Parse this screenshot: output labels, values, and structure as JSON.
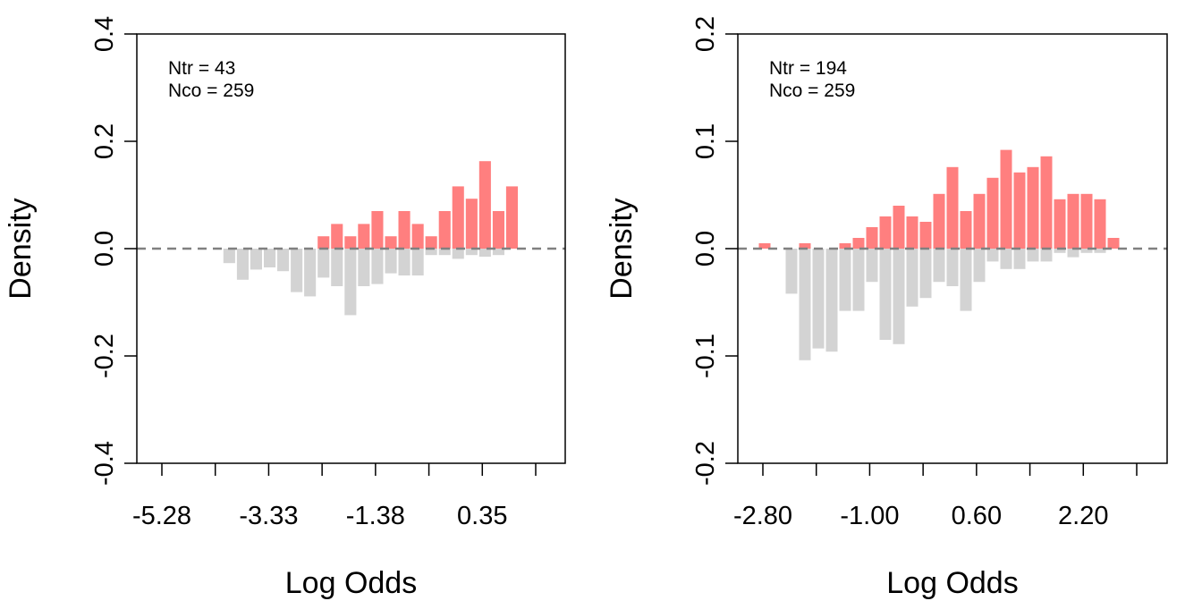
{
  "colors": {
    "treated": "#ff7f7f",
    "control": "#d3d3d3",
    "zero_line": "#808080"
  },
  "chart_data": [
    {
      "type": "bar",
      "xlabel": "Log Odds",
      "ylabel": "Density",
      "xlim": [
        -5.8,
        1.2
      ],
      "ylim": [
        -0.4,
        0.4
      ],
      "yticks": [
        "-0.4",
        "-0.2",
        "0.0",
        "0.2",
        "0.4"
      ],
      "xtick_labels": [
        "-5.28",
        "-3.33",
        "-1.38",
        "0.35"
      ],
      "annotations": [
        "Ntr =  43",
        "Nco =  259"
      ],
      "grid": false,
      "bin_edges": [
        -4.4,
        -4.18,
        -3.96,
        -3.74,
        -3.52,
        -3.3,
        -3.08,
        -2.86,
        -2.64,
        -2.42,
        -2.2,
        -1.98,
        -1.76,
        -1.54,
        -1.32,
        -1.1,
        -0.88,
        -0.66,
        -0.44,
        -0.22,
        0.0,
        0.22,
        0.44
      ],
      "series": [
        {
          "values": [
            0,
            0,
            0,
            0,
            0,
            0,
            0,
            0.023,
            0.046,
            0.023,
            0.046,
            0.07,
            0.023,
            0.07,
            0.046,
            0.023,
            0.07,
            0.116,
            0.093,
            0.163,
            0.07,
            0.116
          ]
        },
        {
          "values": [
            -0.027,
            -0.058,
            -0.039,
            -0.035,
            -0.042,
            -0.081,
            -0.089,
            -0.054,
            -0.07,
            -0.124,
            -0.07,
            -0.066,
            -0.046,
            -0.05,
            -0.05,
            -0.012,
            -0.012,
            -0.019,
            -0.012,
            -0.015,
            -0.012,
            0
          ]
        }
      ]
    },
    {
      "type": "bar",
      "xlabel": "Log Odds",
      "ylabel": "Density",
      "xlim": [
        -3.2,
        3.2
      ],
      "ylim": [
        -0.2,
        0.2
      ],
      "yticks": [
        "-0.2",
        "-0.1",
        "0.0",
        "0.1",
        "0.2"
      ],
      "xtick_labels": [
        "-2.80",
        "-1.00",
        "0.60",
        "2.20"
      ],
      "annotations": [
        "Ntr =  194",
        "Nco =  259"
      ],
      "grid": false,
      "bin_edges": [
        -2.9,
        -2.7,
        -2.5,
        -2.3,
        -2.1,
        -1.9,
        -1.7,
        -1.5,
        -1.3,
        -1.1,
        -0.9,
        -0.7,
        -0.5,
        -0.3,
        -0.1,
        0.1,
        0.3,
        0.5,
        0.7,
        0.9,
        1.1,
        1.3,
        1.5,
        1.7,
        1.9,
        2.1,
        2.3,
        2.5
      ],
      "series": [
        {
          "values": [
            0.005,
            0,
            0,
            0.005,
            0,
            0,
            0.005,
            0.01,
            0.02,
            0.03,
            0.04,
            0.03,
            0.025,
            0.051,
            0.076,
            0.035,
            0.051,
            0.066,
            0.092,
            0.071,
            0.076,
            0.086,
            0.046,
            0.051,
            0.051,
            0.046,
            0.01
          ]
        },
        {
          "values": [
            0,
            0,
            -0.042,
            -0.104,
            -0.093,
            -0.096,
            -0.058,
            -0.058,
            -0.031,
            -0.085,
            -0.089,
            -0.054,
            -0.046,
            -0.031,
            -0.035,
            -0.058,
            -0.031,
            -0.012,
            -0.019,
            -0.019,
            -0.012,
            -0.012,
            -0.004,
            -0.008,
            -0.004,
            -0.004,
            0
          ]
        }
      ]
    }
  ]
}
